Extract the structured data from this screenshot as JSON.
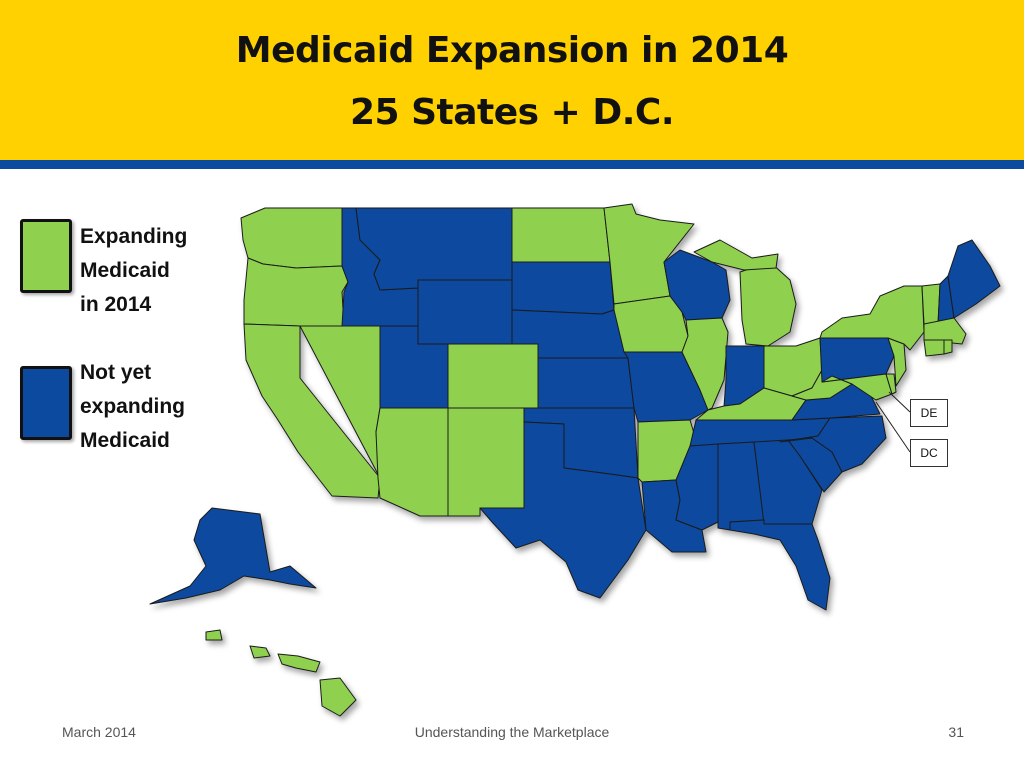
{
  "header": {
    "title_line1": "Medicaid Expansion in 2014",
    "title_line2": "25 States + D.C."
  },
  "colors": {
    "expanding": "#8FD14F",
    "not_expanding": "#0B4A9E",
    "header_bg": "#FFD100",
    "header_stripe": "#0B4A9E"
  },
  "legend": {
    "expanding_label": "Expanding\nMedicaid\nin 2014",
    "not_expanding_label": "Not yet\nexpanding\nMedicaid"
  },
  "callouts": {
    "de": "DE",
    "dc": "DC"
  },
  "states": {
    "expanding": [
      "WA",
      "OR",
      "CA",
      "NV",
      "AZ",
      "CO",
      "NM",
      "ND",
      "MN",
      "IA",
      "IL",
      "AR",
      "KY",
      "WV",
      "OH",
      "MI",
      "NY",
      "VT",
      "MA",
      "RI",
      "CT",
      "NJ",
      "MD",
      "DE",
      "DC",
      "HI"
    ],
    "not_expanding": [
      "ID",
      "MT",
      "WY",
      "UT",
      "SD",
      "NE",
      "KS",
      "OK",
      "TX",
      "LA",
      "MO",
      "WI",
      "IN",
      "TN",
      "MS",
      "AL",
      "GA",
      "FL",
      "SC",
      "NC",
      "VA",
      "PA",
      "NH",
      "ME",
      "AK"
    ]
  },
  "footer": {
    "date": "March 2014",
    "center": "Understanding the Marketplace",
    "page": "31"
  }
}
